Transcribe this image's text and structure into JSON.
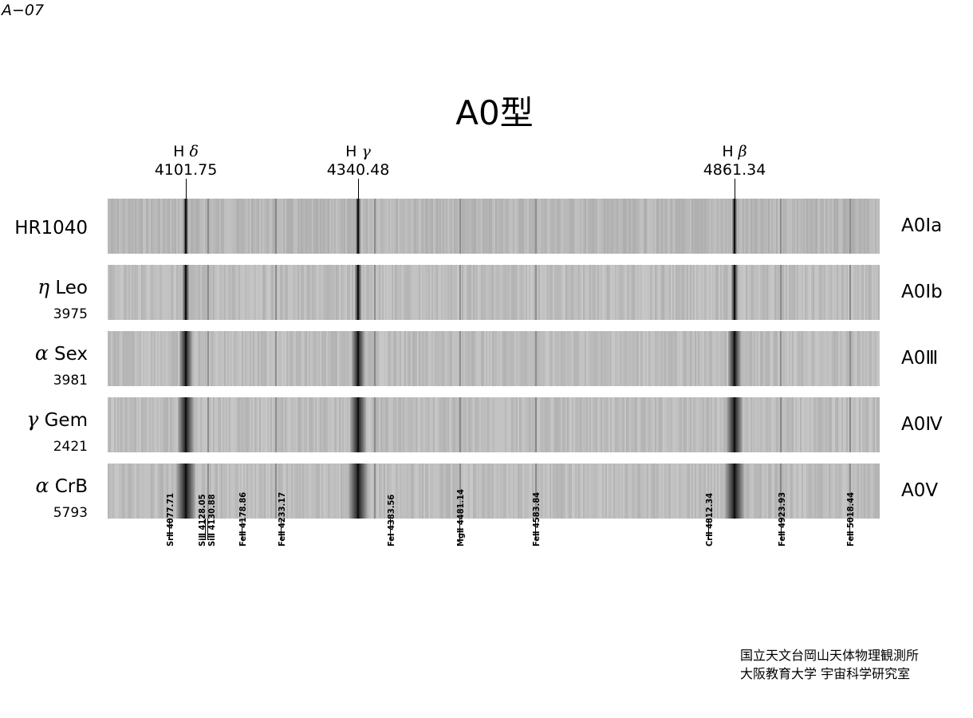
{
  "page_id": "A−07",
  "title": "A0型",
  "balmer_lines": [
    {
      "label": "H",
      "greek": "δ",
      "wavelength": "4101.75"
    },
    {
      "label": "H",
      "greek": "γ",
      "wavelength": "4340.48"
    },
    {
      "label": "H",
      "greek": "β",
      "wavelength": "4861.34"
    }
  ],
  "stars": [
    {
      "greek": "",
      "name": "HR1040",
      "hr": "",
      "mk_class": "A0Ⅰa"
    },
    {
      "greek": "η",
      "name": "Leo",
      "hr": "3975",
      "mk_class": "A0Ⅰb"
    },
    {
      "greek": "α",
      "name": "Sex",
      "hr": "3981",
      "mk_class": "A0Ⅲ"
    },
    {
      "greek": "γ",
      "name": "Gem",
      "hr": "2421",
      "mk_class": "A0Ⅳ"
    },
    {
      "greek": "α",
      "name": "CrB",
      "hr": "5793",
      "mk_class": "A0Ⅴ"
    }
  ],
  "metal_lines": [
    {
      "ion": "SrⅡ",
      "wavelength": "4077.71"
    },
    {
      "ion": "SiⅡ",
      "wavelength": "4128.05"
    },
    {
      "ion": "SiⅡ",
      "wavelength": "4130.88"
    },
    {
      "ion": "FeⅡ",
      "wavelength": "4178.86"
    },
    {
      "ion": "FeⅡ",
      "wavelength": "4233.17"
    },
    {
      "ion": "FeⅠ",
      "wavelength": "4383.56"
    },
    {
      "ion": "MgⅡ",
      "wavelength": "4481.14"
    },
    {
      "ion": "FeⅡ",
      "wavelength": "4583.84"
    },
    {
      "ion": "CrⅡ",
      "wavelength": "4812.34"
    },
    {
      "ion": "FeⅡ",
      "wavelength": "4923.93"
    },
    {
      "ion": "FeⅡ",
      "wavelength": "5018.44"
    }
  ],
  "credits": {
    "line1": "国立天文台岡山天体物理観測所",
    "line2": "大阪教育大学 宇宙科学研究室"
  }
}
